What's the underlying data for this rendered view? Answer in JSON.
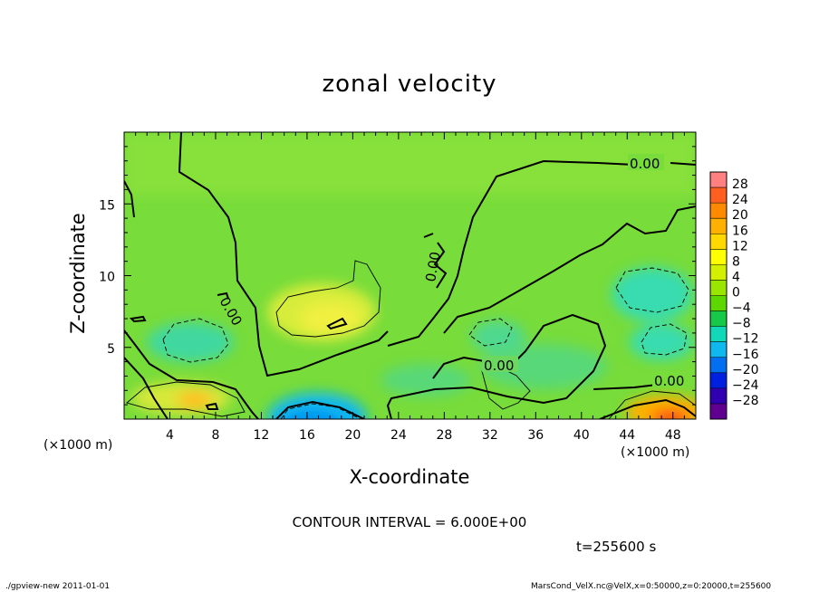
{
  "chart_data": {
    "type": "heatmap",
    "title": "zonal velocity",
    "xlabel": "X-coordinate",
    "ylabel": "Z-coordinate",
    "x_unit": "(×1000 m)",
    "x_ticks": [
      4,
      8,
      12,
      16,
      20,
      24,
      28,
      32,
      36,
      40,
      44,
      48
    ],
    "y_ticks": [
      5,
      10,
      15
    ],
    "xlim": [
      0,
      50
    ],
    "ylim": [
      0,
      20
    ],
    "colorbar": {
      "labels": [
        28,
        24,
        20,
        16,
        12,
        8,
        4,
        0,
        -4,
        -8,
        -12,
        -16,
        -20,
        -24,
        -28
      ],
      "colors": [
        "#ff8080",
        "#ff6020",
        "#ff8a00",
        "#ffb000",
        "#ffd800",
        "#ffff00",
        "#d2f000",
        "#9ae600",
        "#5cd800",
        "#18c848",
        "#10d8b8",
        "#10b8f0",
        "#0070f0",
        "#0020e0",
        "#3000b0",
        "#600090"
      ]
    },
    "contour_labels": [
      "0.00",
      "0.00",
      "0.00",
      "0.00",
      "0.00"
    ],
    "contour_interval_text": "CONTOUR INTERVAL = 6.000E+00",
    "time_text": "t=255600 s"
  },
  "footer": {
    "left": "./gpview-new   2011-01-01",
    "right": "MarsCond_VelX.nc@VelX,x=0:50000,z=0:20000,t=255600"
  }
}
